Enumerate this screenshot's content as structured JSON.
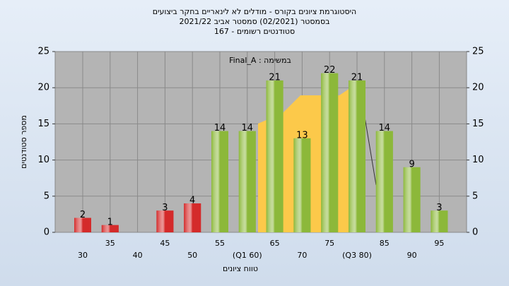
{
  "chart_data": {
    "type": "bar",
    "title": "היסטוגרמת ציונים בקורס - מודלים לא לינאריים בחקר ביצועים",
    "subtitle": "בסמסטר  (02/2021)  סמסטר אביב 2021/22",
    "subtitle2": "סטודנטים רשומים - 167",
    "annotation": "Final_A : במשימה",
    "y_label": "מספר סטודנטים",
    "x_label": "טווח ציונים",
    "categories": [
      "30",
      "35",
      "40",
      "45",
      "50",
      "55",
      "(Q1 60)",
      "65",
      "70",
      "75",
      "(Q3 80)",
      "85",
      "90",
      "95"
    ],
    "values": [
      2,
      1,
      null,
      3,
      4,
      14,
      14,
      21,
      13,
      22,
      21,
      14,
      9,
      3
    ],
    "colors": [
      "#d42a2a",
      "#d42a2a",
      "#d42a2a",
      "#d42a2a",
      "#d42a2a",
      "#8cb83a",
      "#8cb83a",
      "#8cb83a",
      "#8cb83a",
      "#8cb83a",
      "#8cb83a",
      "#8cb83a",
      "#8cb83a",
      "#8cb83a"
    ],
    "ylim": [
      0,
      25
    ],
    "yticks": [
      0,
      5,
      10,
      15,
      20,
      25
    ],
    "grid": true
  }
}
